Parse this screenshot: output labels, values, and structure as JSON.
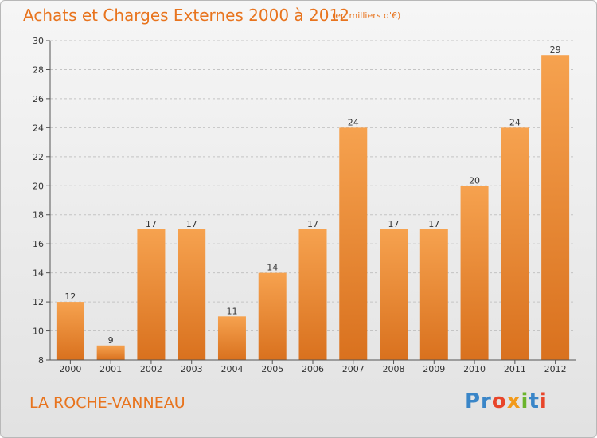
{
  "title": "Achats et Charges Externes 2000 à 2012",
  "subtitle": "(en milliers d'€)",
  "commune": "LA ROCHE-VANNEAU",
  "logo": {
    "letters": [
      "Pr",
      "o",
      "x",
      "i",
      "t",
      "i"
    ],
    "text": "Proxiti"
  },
  "colors": {
    "bar_light": "#f6a24f",
    "bar_dark": "#d9711e",
    "accent": "#e8741e"
  },
  "chart_data": {
    "type": "bar",
    "title": "Achats et Charges Externes 2000 à 2012",
    "subtitle": "(en milliers d'€)",
    "categories": [
      "2000",
      "2001",
      "2002",
      "2003",
      "2004",
      "2005",
      "2006",
      "2007",
      "2008",
      "2009",
      "2010",
      "2011",
      "2012"
    ],
    "values": [
      12,
      9,
      17,
      17,
      11,
      14,
      17,
      24,
      17,
      17,
      20,
      24,
      29
    ],
    "ylim": [
      8,
      30
    ],
    "yticks": [
      8,
      10,
      12,
      14,
      16,
      18,
      20,
      22,
      24,
      26,
      28,
      30
    ],
    "xlabel": "",
    "ylabel": "",
    "grid": "horizontal dashed",
    "legend": "none"
  }
}
